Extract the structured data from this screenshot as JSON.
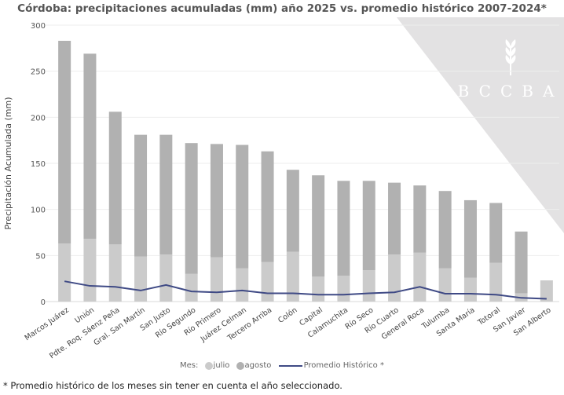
{
  "chart_data": {
    "type": "bar",
    "stacked": true,
    "title": "Córdoba: precipitaciones acumuladas (mm) año 2025 vs. promedio histórico 2007-2024*",
    "xlabel": "",
    "ylabel": "Precipitación Acumulada (mm)",
    "ylim": [
      0,
      300
    ],
    "yticks": [
      0,
      50,
      100,
      150,
      200,
      250,
      300
    ],
    "grid": true,
    "legend_placement": "bottom",
    "legend_title": "Mes:",
    "categories": [
      "Marcos Juárez",
      "Unión",
      "Pdte. Roq. Sáenz Peña",
      "Gral. San Martín",
      "San Justo",
      "Río Segundo",
      "Río Primero",
      "Juárez Celman",
      "Tercero Arriba",
      "Colón",
      "Capital",
      "Calamuchita",
      "Río Seco",
      "Río Cuarto",
      "General Roca",
      "Tulumba",
      "Santa María",
      "Totoral",
      "San Javier",
      "San Alberto"
    ],
    "series": [
      {
        "name": "julio",
        "type": "bar",
        "color": "#cbcbcb",
        "values": [
          63,
          68,
          62,
          49,
          51,
          30,
          48,
          36,
          43,
          54,
          27,
          28,
          34,
          51,
          53,
          36,
          26,
          42,
          9,
          23
        ]
      },
      {
        "name": "agosto",
        "type": "bar",
        "color": "#b1b1b1",
        "values": [
          220,
          201,
          144,
          132,
          130,
          142,
          123,
          134,
          120,
          89,
          110,
          103,
          97,
          78,
          73,
          84,
          84,
          65,
          67,
          0
        ]
      },
      {
        "name": "Promedio Histórico *",
        "type": "line",
        "color": "#3f4a85",
        "values": [
          22,
          17,
          16,
          12,
          18,
          11,
          10,
          12,
          9,
          9,
          7.5,
          7.5,
          9,
          10,
          16,
          8.5,
          8.5,
          7.5,
          4,
          3
        ]
      }
    ]
  },
  "watermark": {
    "text": "BCCBA",
    "icon": "wheat-icon"
  },
  "footnote": "* Promedio histórico de los meses sin tener en cuenta el año seleccionado."
}
